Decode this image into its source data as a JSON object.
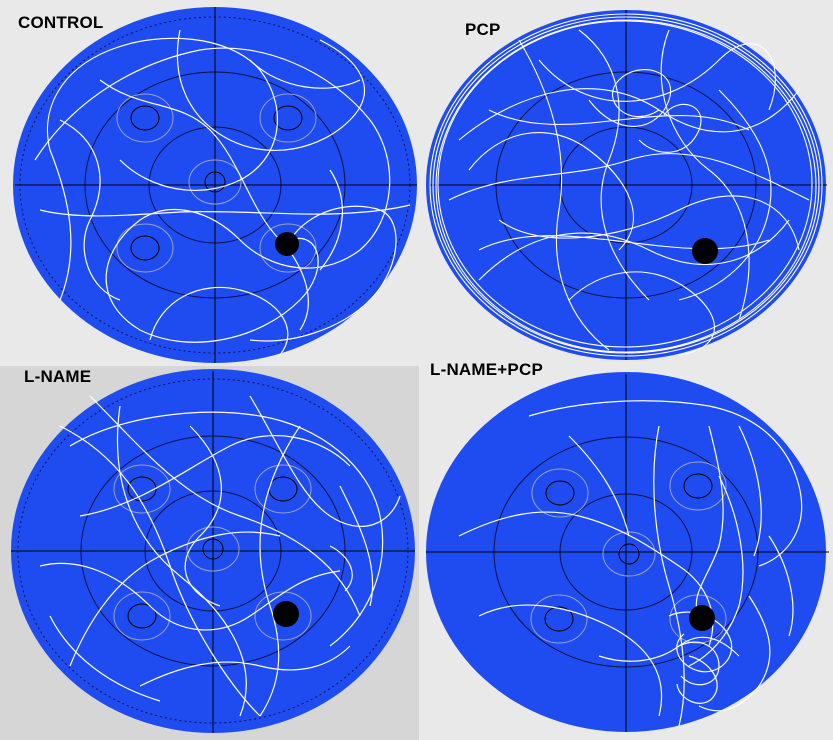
{
  "panels": [
    {
      "id": "control",
      "title": "CONTROL"
    },
    {
      "id": "pcp",
      "title": "PCP"
    },
    {
      "id": "lname",
      "title": "L-NAME"
    },
    {
      "id": "lnamepcp",
      "title": "L-NAME+PCP"
    }
  ],
  "colors": {
    "pool": "#1f4cf0",
    "background_light": "#e7e7e7",
    "background_gray": "#d6d6d6",
    "path": "#ffffff",
    "platform": "#000000",
    "grid_lines": "#000000",
    "quadrant_circles": "#8a8fb5"
  }
}
